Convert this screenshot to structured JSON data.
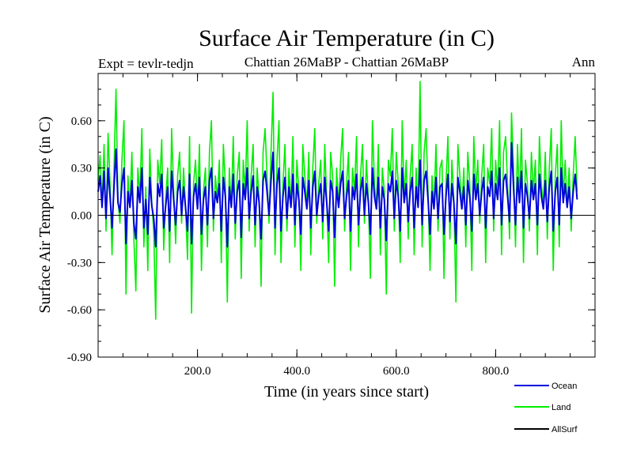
{
  "chart_data": {
    "type": "line",
    "title": "Surface Air Temperature (in C)",
    "subtitle_left": "Expt = tevlr-tedjn",
    "subtitle_center": "Chattian  26MaBP - Chattian  26MaBP",
    "subtitle_right": "Ann",
    "xlabel": "Time (in years since start)",
    "ylabel": "Surface Air Temperature (in C)",
    "xlim": [
      0,
      1000
    ],
    "ylim": [
      -0.9,
      0.9
    ],
    "x_ticks": [
      {
        "value": 200,
        "label": "200.0"
      },
      {
        "value": 400,
        "label": "400.0"
      },
      {
        "value": 600,
        "label": "600.0"
      },
      {
        "value": 800,
        "label": "800.0"
      }
    ],
    "y_ticks": [
      {
        "value": 0.6,
        "label": "0.60"
      },
      {
        "value": 0.3,
        "label": "0.30"
      },
      {
        "value": 0.0,
        "label": "0.00"
      },
      {
        "value": -0.3,
        "label": "-0.30"
      },
      {
        "value": -0.6,
        "label": "-0.60"
      },
      {
        "value": -0.9,
        "label": "-0.90"
      }
    ],
    "zero_line": 0.0,
    "series": [
      {
        "name": "Land",
        "color": "#00ee00",
        "x_start": 0,
        "x_step": 4,
        "values": [
          0.22,
          0.38,
          0.05,
          0.45,
          -0.1,
          0.52,
          0.2,
          -0.25,
          0.3,
          0.8,
          0.1,
          -0.05,
          0.35,
          0.6,
          -0.5,
          0.25,
          0.05,
          0.4,
          -0.15,
          -0.48,
          0.3,
          0.12,
          0.55,
          -0.2,
          0.18,
          -0.35,
          0.42,
          0.08,
          -0.1,
          -0.66,
          0.35,
          0.2,
          0.48,
          -0.22,
          0.1,
          0.3,
          -0.3,
          0.55,
          0.15,
          -0.18,
          0.25,
          0.4,
          -0.05,
          0.3,
          0.05,
          -0.28,
          0.5,
          -0.62,
          0.2,
          0.35,
          0.05,
          0.45,
          -0.35,
          0.15,
          0.3,
          -0.2,
          0.4,
          0.6,
          -0.1,
          0.25,
          0.1,
          0.35,
          -0.3,
          0.45,
          0.2,
          -0.55,
          0.3,
          0.05,
          0.5,
          -0.15,
          0.25,
          0.4,
          -0.4,
          0.35,
          0.15,
          0.6,
          -0.1,
          0.25,
          0.45,
          -0.2,
          0.3,
          0.1,
          -0.45,
          0.4,
          0.55,
          0.25,
          -0.05,
          0.4,
          0.78,
          -0.25,
          0.35,
          0.6,
          -0.3,
          0.2,
          0.45,
          -0.1,
          0.3,
          0.05,
          0.5,
          -0.2,
          0.35,
          0.15,
          -0.35,
          0.45,
          0.25,
          0.05,
          0.4,
          -0.25,
          0.3,
          0.55,
          -0.05,
          0.2,
          0.35,
          -0.15,
          0.45,
          0.1,
          -0.3,
          0.4,
          0.25,
          -0.45,
          0.3,
          0.05,
          0.35,
          0.55,
          -0.1,
          0.2,
          0.4,
          -0.35,
          0.3,
          0.15,
          0.5,
          -0.2,
          0.25,
          0.45,
          -0.05,
          0.35,
          0.1,
          -0.4,
          0.6,
          0.2,
          0.05,
          0.45,
          -0.25,
          0.3,
          0.15,
          -0.5,
          0.35,
          0.25,
          0.55,
          -0.1,
          0.4,
          0.2,
          -0.3,
          0.6,
          0.1,
          0.35,
          -0.15,
          0.25,
          0.45,
          -0.25,
          0.3,
          0.05,
          0.85,
          -0.2,
          0.4,
          0.55,
          0.15,
          -0.35,
          0.25,
          0.05,
          0.45,
          -0.1,
          0.3,
          0.35,
          -0.4,
          0.2,
          0.5,
          -0.15,
          0.35,
          0.1,
          -0.55,
          0.45,
          0.25,
          0.05,
          0.3,
          -0.2,
          0.4,
          0.2,
          -0.35,
          0.5,
          0.15,
          0.35,
          -0.05,
          0.25,
          0.45,
          -0.3,
          0.3,
          0.2,
          0.55,
          -0.1,
          0.35,
          0.15,
          0.6,
          -0.25,
          0.4,
          0.5,
          0.2,
          -0.15,
          0.65,
          0.3,
          -0.2,
          0.45,
          0.1,
          0.55,
          -0.3,
          0.35,
          0.2,
          -0.1,
          0.4,
          0.15,
          0.35,
          -0.25,
          0.5,
          0.2,
          0.05,
          0.4,
          -0.15,
          0.3,
          0.55,
          -0.35,
          0.25,
          0.45,
          -0.2,
          0.6,
          0.1,
          0.35,
          0.05,
          0.3,
          -0.1,
          0.25,
          0.5,
          0.15
        ]
      },
      {
        "name": "Ocean",
        "color": "#0000dd",
        "x_start": 0,
        "x_step": 4,
        "values": [
          0.15,
          0.25,
          0.05,
          0.28,
          -0.02,
          0.3,
          0.12,
          -0.08,
          0.18,
          0.42,
          0.08,
          0.02,
          0.2,
          0.3,
          -0.18,
          0.15,
          0.05,
          0.22,
          -0.05,
          -0.15,
          0.18,
          0.08,
          0.3,
          -0.08,
          0.1,
          -0.12,
          0.24,
          0.06,
          -0.02,
          -0.2,
          0.2,
          0.12,
          0.26,
          -0.08,
          0.06,
          0.18,
          -0.1,
          0.28,
          0.1,
          -0.06,
          0.15,
          0.22,
          0.0,
          0.18,
          0.05,
          -0.1,
          0.26,
          -0.18,
          0.12,
          0.2,
          0.04,
          0.24,
          -0.12,
          0.1,
          0.18,
          -0.06,
          0.22,
          0.3,
          -0.02,
          0.15,
          0.08,
          0.2,
          -0.1,
          0.24,
          0.12,
          -0.2,
          0.18,
          0.05,
          0.26,
          -0.05,
          0.15,
          0.22,
          -0.14,
          0.2,
          0.1,
          0.3,
          -0.02,
          0.15,
          0.25,
          -0.06,
          0.18,
          0.08,
          -0.15,
          0.22,
          0.28,
          0.15,
          0.0,
          0.22,
          0.4,
          -0.08,
          0.2,
          0.3,
          -0.1,
          0.12,
          0.24,
          -0.02,
          0.18,
          0.05,
          0.26,
          -0.06,
          0.2,
          0.1,
          -0.12,
          0.24,
          0.15,
          0.04,
          0.22,
          -0.08,
          0.18,
          0.28,
          0.0,
          0.12,
          0.2,
          -0.04,
          0.24,
          0.08,
          -0.1,
          0.22,
          0.15,
          -0.14,
          0.18,
          0.05,
          0.2,
          0.28,
          -0.02,
          0.12,
          0.22,
          -0.1,
          0.18,
          0.1,
          0.26,
          -0.06,
          0.15,
          0.24,
          0.0,
          0.2,
          0.08,
          -0.12,
          0.3,
          0.12,
          0.04,
          0.24,
          -0.08,
          0.18,
          0.1,
          -0.16,
          0.2,
          0.15,
          0.28,
          -0.02,
          0.22,
          0.12,
          -0.1,
          0.3,
          0.08,
          0.2,
          -0.04,
          0.15,
          0.24,
          -0.08,
          0.18,
          0.05,
          0.35,
          -0.06,
          0.22,
          0.28,
          0.1,
          -0.12,
          0.15,
          0.04,
          0.24,
          -0.02,
          0.18,
          0.2,
          -0.12,
          0.12,
          0.26,
          -0.04,
          0.2,
          0.08,
          -0.18,
          0.24,
          0.15,
          0.04,
          0.18,
          -0.06,
          0.22,
          0.12,
          -0.1,
          0.26,
          0.1,
          0.2,
          0.0,
          0.15,
          0.24,
          -0.08,
          0.18,
          0.12,
          0.28,
          -0.02,
          0.2,
          0.1,
          0.3,
          -0.06,
          0.22,
          0.26,
          0.12,
          -0.04,
          0.46,
          0.18,
          -0.06,
          0.24,
          0.08,
          0.28,
          -0.08,
          0.2,
          0.12,
          -0.02,
          0.22,
          0.1,
          0.2,
          -0.06,
          0.26,
          0.12,
          0.04,
          0.22,
          -0.04,
          0.18,
          0.28,
          -0.1,
          0.15,
          0.24,
          -0.06,
          0.3,
          0.08,
          0.2,
          0.05,
          0.18,
          -0.02,
          0.15,
          0.26,
          0.1
        ]
      }
    ],
    "legend": {
      "placement": "bottom-right",
      "entries": [
        {
          "label": "Ocean",
          "color": "#0000dd"
        },
        {
          "label": "Land",
          "color": "#00ee00"
        },
        {
          "label": "AllSurf",
          "color": "#000000"
        }
      ]
    },
    "grid": false
  }
}
